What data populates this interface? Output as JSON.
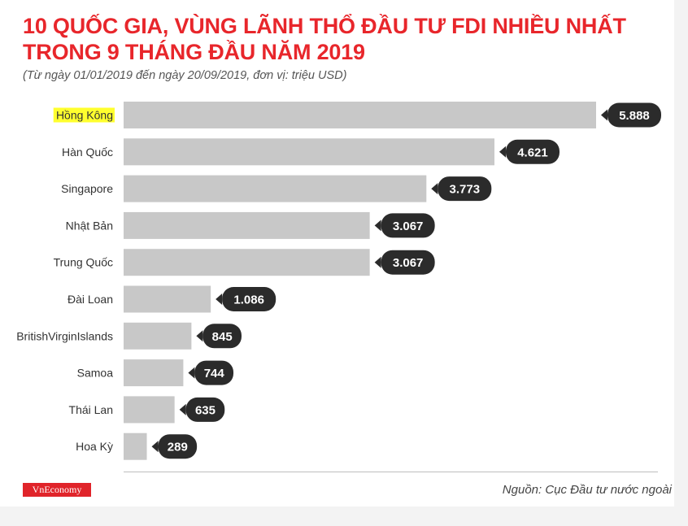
{
  "header": {
    "title_line1": "10 QUỐC GIA, VÙNG LÃNH THỔ ĐẦU TƯ FDI NHIỀU NHẤT",
    "title_line2": "TRONG 9 THÁNG ĐẦU NĂM 2019",
    "subtitle": "(Từ ngày 01/01/2019 đến ngày 20/09/2019, đơn vị: triệu USD)"
  },
  "footer": {
    "logo_text": "VnEconomy",
    "source": "Nguồn: Cục Đầu tư nước ngoài"
  },
  "colors": {
    "title": "#e8262b",
    "bar": "#c8c8c8",
    "label_bubble": "#2b2b2b",
    "highlight": "#ffff2e",
    "logo_bg": "#e0242a"
  },
  "chart_data": {
    "type": "bar",
    "orientation": "horizontal",
    "categories": [
      "Hồng Kông",
      "Hàn Quốc",
      "Singapore",
      "Nhật Bản",
      "Trung Quốc",
      "Đài Loan",
      "BritishVirginIslands",
      "Samoa",
      "Thái Lan",
      "Hoa Kỳ"
    ],
    "values": [
      5888,
      4621,
      3773,
      3067,
      3067,
      1086,
      845,
      744,
      635,
      289
    ],
    "value_labels": [
      "5.888",
      "4.621",
      "3.773",
      "3.067",
      "3.067",
      "1.086",
      "845",
      "744",
      "635",
      "289"
    ],
    "highlighted_category": "Hồng Kông",
    "xlim": [
      0,
      5888
    ],
    "grid": false,
    "legend": "none"
  }
}
